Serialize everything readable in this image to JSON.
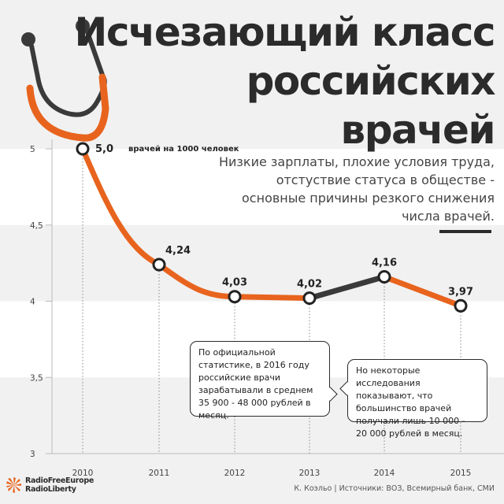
{
  "title": {
    "line1": "Исчезающий класс",
    "line2": "российских",
    "line3": "врачей"
  },
  "subtitle": "Низкие зарплаты, плохие условия труда, отстуствие статуса в обществе - основные причины резкого снижения числа врачей.",
  "notes": {
    "official": "По официальной статистике, в 2016 году российские врачи зарабатывали в среднем 35 900 - 48 000 рублей в месяц.",
    "research": "Но некоторые исследования показывают, что большинство врачей получали лишь 10 000 - 20 000 рублей в месяц."
  },
  "credit": "К. Коэльо | Источники: ВОЗ, Всемирный банк, СМИ",
  "logo": {
    "line1": "RadioFreeEurope",
    "line2": "RadioLiberty"
  },
  "colors": {
    "orange": "#e8641e",
    "dark": "#3a3a3a",
    "band": "#ffffff",
    "background": "#f1f1f1",
    "logo": "#e8641e"
  },
  "chart_data": {
    "type": "line",
    "categories": [
      "2010",
      "2011",
      "2012",
      "2013",
      "2014",
      "2015"
    ],
    "values": [
      5.0,
      4.24,
      4.03,
      4.02,
      4.16,
      3.97
    ],
    "data_labels": [
      "5,0",
      "4,24",
      "4,03",
      "4,02",
      "4,16",
      "3,97"
    ],
    "first_point_note": "врачей на 1000 человек",
    "ylim": [
      3,
      5
    ],
    "yticks": [
      3,
      3.5,
      4,
      4.5,
      5
    ],
    "ytick_labels": [
      "3",
      "3,5",
      "4",
      "4,5",
      "5"
    ],
    "segment_colors": [
      "orange",
      "orange",
      "orange",
      "dark",
      "orange"
    ],
    "grid": "alternating horizontal bands",
    "decoration": "stethoscope"
  }
}
